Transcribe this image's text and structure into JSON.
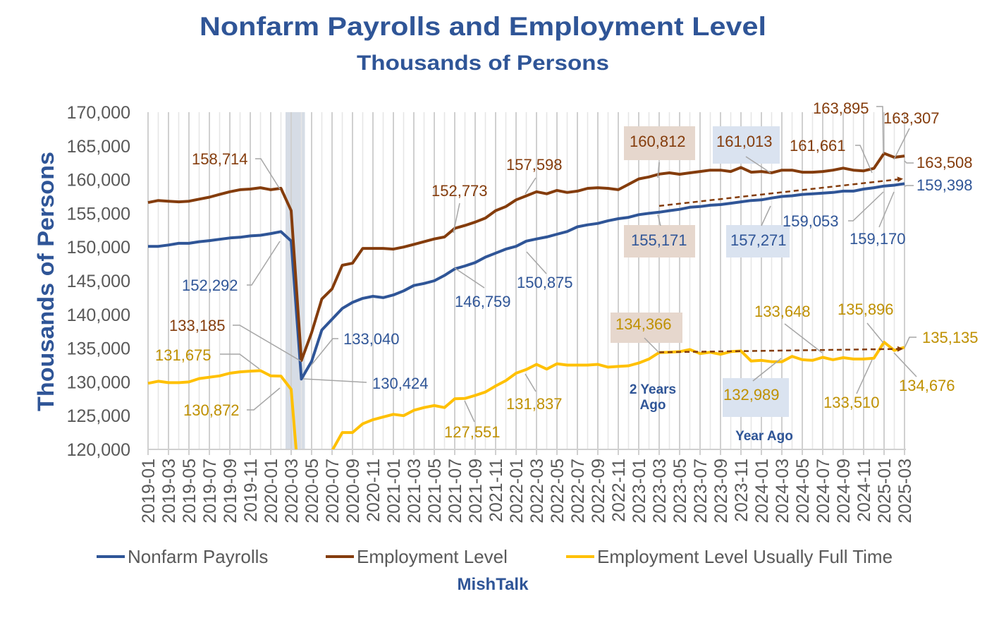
{
  "chart_data": {
    "type": "line",
    "title": "Nonfarm Payrolls and Employment Level",
    "subtitle": "Thousands of Persons",
    "xlabel": "",
    "ylabel": "Thousands of  Persons",
    "ylim": [
      120000,
      170000
    ],
    "ytick_step": 5000,
    "yticks": [
      "120,000",
      "125,000",
      "130,000",
      "135,000",
      "140,000",
      "145,000",
      "150,000",
      "155,000",
      "160,000",
      "165,000",
      "170,000"
    ],
    "grid": "vertical",
    "legend_position": "bottom",
    "x": [
      "2019-01",
      "2019-02",
      "2019-03",
      "2019-04",
      "2019-05",
      "2019-06",
      "2019-07",
      "2019-08",
      "2019-09",
      "2019-10",
      "2019-11",
      "2019-12",
      "2020-01",
      "2020-02",
      "2020-03",
      "2020-04",
      "2020-05",
      "2020-06",
      "2020-07",
      "2020-08",
      "2020-09",
      "2020-10",
      "2020-11",
      "2020-12",
      "2021-01",
      "2021-02",
      "2021-03",
      "2021-04",
      "2021-05",
      "2021-06",
      "2021-07",
      "2021-08",
      "2021-09",
      "2021-10",
      "2021-11",
      "2021-12",
      "2022-01",
      "2022-02",
      "2022-03",
      "2022-04",
      "2022-05",
      "2022-06",
      "2022-07",
      "2022-08",
      "2022-09",
      "2022-10",
      "2022-11",
      "2022-12",
      "2023-01",
      "2023-02",
      "2023-03",
      "2023-04",
      "2023-05",
      "2023-06",
      "2023-07",
      "2023-08",
      "2023-09",
      "2023-10",
      "2023-11",
      "2023-12",
      "2024-01",
      "2024-02",
      "2024-03",
      "2024-04",
      "2024-05",
      "2024-06",
      "2024-07",
      "2024-08",
      "2024-09",
      "2024-10",
      "2024-11",
      "2024-12",
      "2025-01",
      "2025-02",
      "2025-03"
    ],
    "xtick_labels": [
      "2019-01",
      "2019-03",
      "2019-05",
      "2019-07",
      "2019-09",
      "2019-11",
      "2020-01",
      "2020-03",
      "2020-05",
      "2020-07",
      "2020-09",
      "2020-11",
      "2021-01",
      "2021-03",
      "2021-05",
      "2021-07",
      "2021-09",
      "2021-11",
      "2022-01",
      "2022-03",
      "2022-05",
      "2022-07",
      "2022-09",
      "2022-11",
      "2023-01",
      "2023-03",
      "2023-05",
      "2023-07",
      "2023-09",
      "2023-11",
      "2024-01",
      "2024-03",
      "2024-05",
      "2024-07",
      "2024-09",
      "2024-11",
      "2025-01",
      "2025-03"
    ],
    "shaded_period": {
      "start": "2020-03",
      "end": "2020-04",
      "color": "#d6dce5"
    },
    "series": [
      {
        "name": "Nonfarm Payrolls",
        "color": "#2f5597",
        "label_color": "#2f5597",
        "values": [
          150100,
          150100,
          150300,
          150550,
          150550,
          150800,
          150950,
          151150,
          151350,
          151450,
          151650,
          151750,
          152000,
          152292,
          150900,
          130424,
          133040,
          137700,
          139300,
          140900,
          141800,
          142400,
          142700,
          142500,
          142900,
          143500,
          144300,
          144600,
          145000,
          145800,
          146759,
          147200,
          147700,
          148500,
          149100,
          149700,
          150100,
          150875,
          151200,
          151500,
          151900,
          152300,
          153000,
          153300,
          153500,
          153900,
          154200,
          154400,
          154800,
          155000,
          155171,
          155400,
          155600,
          155900,
          156000,
          156200,
          156300,
          156500,
          156700,
          156900,
          157000,
          157271,
          157500,
          157600,
          157800,
          157900,
          158000,
          158100,
          158300,
          158300,
          158600,
          158800,
          159053,
          159170,
          159398
        ],
        "labels": [
          {
            "x": "2020-02",
            "text": "152,292"
          },
          {
            "x": "2020-05",
            "text": "133,040"
          },
          {
            "x": "2020-04",
            "text": "130,424"
          },
          {
            "x": "2021-07",
            "text": "146,759"
          },
          {
            "x": "2022-02",
            "text": "150,875"
          },
          {
            "x": "2023-03",
            "text": "155,171",
            "highlight": "#e6d7cd"
          },
          {
            "x": "2024-02",
            "text": "157,271",
            "highlight": "#dae3f0"
          },
          {
            "x": "2025-01",
            "text": "159,053"
          },
          {
            "x": "2025-02",
            "text": "159,170"
          },
          {
            "x": "2025-03",
            "text": "159,398"
          }
        ]
      },
      {
        "name": "Employment Level",
        "color": "#843c0c",
        "label_color": "#843c0c",
        "values": [
          156600,
          156900,
          156800,
          156700,
          156800,
          157100,
          157400,
          157800,
          158200,
          158500,
          158600,
          158800,
          158500,
          158714,
          155400,
          133185,
          137300,
          142300,
          143800,
          147300,
          147600,
          149800,
          149800,
          149800,
          149700,
          150000,
          150400,
          150800,
          151200,
          151500,
          152773,
          153200,
          153700,
          154300,
          155400,
          156000,
          157000,
          157598,
          158200,
          157900,
          158400,
          158100,
          158300,
          158700,
          158800,
          158700,
          158500,
          159300,
          160100,
          160400,
          160812,
          161000,
          160800,
          161000,
          161200,
          161400,
          161400,
          161200,
          161800,
          161100,
          161200,
          161013,
          161400,
          161400,
          161100,
          161100,
          161200,
          161400,
          161700,
          161400,
          161300,
          161661,
          163895,
          163307,
          163508
        ],
        "labels": [
          {
            "x": "2020-02",
            "text": "158,714"
          },
          {
            "x": "2020-04",
            "text": "133,185"
          },
          {
            "x": "2021-07",
            "text": "152,773"
          },
          {
            "x": "2022-02",
            "text": "157,598"
          },
          {
            "x": "2023-03",
            "text": "160,812",
            "highlight": "#e6d7cd"
          },
          {
            "x": "2024-02",
            "text": "161,013",
            "highlight": "#dae3f0"
          },
          {
            "x": "2024-12",
            "text": "161,661"
          },
          {
            "x": "2025-01",
            "text": "163,895"
          },
          {
            "x": "2025-02",
            "text": "163,307"
          },
          {
            "x": "2025-03",
            "text": "163,508"
          }
        ]
      },
      {
        "name": "Employment Level Usually Full Time",
        "color": "#ffc000",
        "label_color": "#bf9000",
        "values": [
          129800,
          130100,
          129900,
          129900,
          130000,
          130500,
          130700,
          130900,
          131300,
          131500,
          131600,
          131675,
          130900,
          130872,
          128900,
          110500,
          113500,
          117500,
          119800,
          122500,
          122500,
          123800,
          124400,
          124800,
          125200,
          125000,
          125800,
          126200,
          126500,
          126200,
          127500,
          127551,
          128000,
          128500,
          129400,
          130200,
          131300,
          131837,
          132600,
          131900,
          132700,
          132500,
          132500,
          132500,
          132600,
          132200,
          132300,
          132400,
          132800,
          133400,
          134366,
          134400,
          134500,
          134800,
          134200,
          134400,
          134100,
          134500,
          134600,
          133100,
          133200,
          133000,
          132989,
          133800,
          133300,
          133200,
          133648,
          133300,
          133600,
          133400,
          133400,
          133510,
          135896,
          134676,
          135135
        ],
        "labels": [
          {
            "x": "2019-12",
            "text": "131,675"
          },
          {
            "x": "2020-02",
            "text": "130,872"
          },
          {
            "x": "2021-08",
            "text": "127,551"
          },
          {
            "x": "2022-02",
            "text": "131,837"
          },
          {
            "x": "2023-03",
            "text": "134,366",
            "highlight": "#e6d7cd"
          },
          {
            "x": "2024-03",
            "text": "132,989",
            "highlight": "#dae3f0"
          },
          {
            "x": "2024-07",
            "text": "133,648"
          },
          {
            "x": "2025-01",
            "text": "135,896"
          },
          {
            "x": "2024-12",
            "text": "133,510"
          },
          {
            "x": "2025-02",
            "text": "134,676"
          },
          {
            "x": "2025-03",
            "text": "135,135"
          }
        ]
      }
    ],
    "trend_arrows": [
      {
        "from": "2023-03",
        "to": "2025-03",
        "start_value": 156100,
        "end_value": 160100,
        "color": "#843c0c",
        "style": "dashed"
      },
      {
        "from": "2023-03",
        "to": "2025-03",
        "start_value": 134400,
        "end_value": 134900,
        "color": "#843c0c",
        "style": "dashed"
      }
    ],
    "annotations": {
      "two_years_ago": [
        "2 Years",
        "Ago"
      ],
      "year_ago": "Year Ago"
    }
  },
  "footer": {
    "source": "MishTalk"
  }
}
